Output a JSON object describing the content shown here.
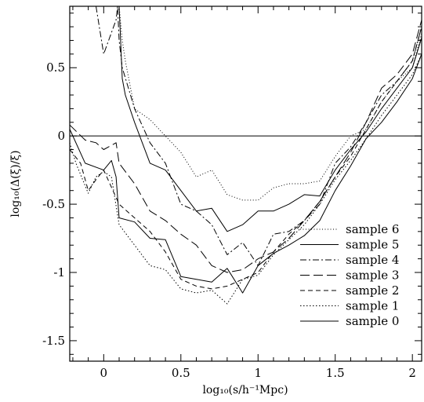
{
  "chart_data": {
    "type": "line",
    "title": "",
    "xlabel": "log₁₀(s/h⁻¹Mpc)",
    "ylabel": "log₁₀(Δ(ξ)/ξ)",
    "xlim": [
      -0.22,
      2.06
    ],
    "ylim": [
      -1.65,
      0.95
    ],
    "x_ticks": [
      0,
      0.5,
      1,
      1.5,
      2
    ],
    "x_tick_labels": [
      "0",
      "0.5",
      "1",
      "1.5",
      "2"
    ],
    "y_ticks": [
      -1.5,
      -1,
      -0.5,
      0,
      0.5
    ],
    "y_tick_labels": [
      "-1.5",
      "-1",
      "-0.5",
      "0",
      "0.5"
    ],
    "reference_line_y": 0,
    "grid": false,
    "legend_position": "bottom-right",
    "series": [
      {
        "name": "sample 6",
        "dash": "dotted-fine",
        "x": [
          0.1,
          0.12,
          0.14,
          0.2,
          0.3,
          0.4,
          0.5,
          0.6,
          0.7,
          0.8,
          0.9,
          1.0,
          1.1,
          1.2,
          1.3,
          1.4,
          1.5,
          1.6,
          1.7,
          1.8,
          1.9,
          2.0,
          2.06
        ],
        "y": [
          0.95,
          0.7,
          0.55,
          0.2,
          0.12,
          0.0,
          -0.12,
          -0.3,
          -0.25,
          -0.43,
          -0.47,
          -0.47,
          -0.38,
          -0.35,
          -0.35,
          -0.33,
          -0.15,
          0.0,
          0.05,
          0.25,
          0.4,
          0.5,
          0.75
        ]
      },
      {
        "name": "sample 5",
        "dash": "solid",
        "x": [
          0.1,
          0.12,
          0.14,
          0.2,
          0.3,
          0.4,
          0.5,
          0.6,
          0.7,
          0.8,
          0.9,
          1.0,
          1.1,
          1.2,
          1.3,
          1.4,
          1.5,
          1.6,
          1.7,
          1.8,
          1.9,
          2.0,
          2.06
        ],
        "y": [
          0.95,
          0.42,
          0.3,
          0.1,
          -0.2,
          -0.25,
          -0.4,
          -0.55,
          -0.53,
          -0.7,
          -0.65,
          -0.55,
          -0.55,
          -0.5,
          -0.43,
          -0.44,
          -0.25,
          -0.1,
          0.03,
          0.2,
          0.35,
          0.5,
          0.72
        ]
      },
      {
        "name": "sample 4",
        "dash": "dash-dot",
        "x": [
          -0.05,
          0.0,
          0.08,
          0.09,
          0.1,
          0.12,
          0.2,
          0.3,
          0.4,
          0.5,
          0.6,
          0.7,
          0.8,
          0.9,
          1.0,
          1.1,
          1.2,
          1.3,
          1.4,
          1.5,
          1.6,
          1.7,
          1.8,
          1.9,
          2.0,
          2.06
        ],
        "y": [
          0.95,
          0.6,
          0.85,
          0.95,
          0.7,
          0.5,
          0.2,
          -0.05,
          -0.2,
          -0.5,
          -0.55,
          -0.65,
          -0.87,
          -0.78,
          -0.95,
          -0.72,
          -0.7,
          -0.62,
          -0.5,
          -0.2,
          -0.08,
          0.1,
          0.3,
          0.4,
          0.55,
          0.8
        ]
      },
      {
        "name": "sample 3",
        "dash": "long-dash",
        "x": [
          -0.22,
          -0.12,
          -0.05,
          0.0,
          0.08,
          0.1,
          0.2,
          0.3,
          0.4,
          0.5,
          0.6,
          0.7,
          0.8,
          0.9,
          1.0,
          1.1,
          1.2,
          1.3,
          1.4,
          1.5,
          1.6,
          1.7,
          1.8,
          1.9,
          2.0,
          2.06
        ],
        "y": [
          0.08,
          -0.03,
          -0.05,
          -0.1,
          -0.05,
          -0.2,
          -0.35,
          -0.55,
          -0.62,
          -0.72,
          -0.8,
          -0.95,
          -1.0,
          -0.98,
          -0.9,
          -0.85,
          -0.75,
          -0.62,
          -0.48,
          -0.3,
          -0.12,
          0.1,
          0.35,
          0.45,
          0.6,
          0.85
        ]
      },
      {
        "name": "sample 2",
        "dash": "short-dash",
        "x": [
          -0.22,
          -0.15,
          -0.1,
          -0.05,
          0.0,
          0.1,
          0.2,
          0.3,
          0.4,
          0.5,
          0.6,
          0.7,
          0.8,
          0.9,
          1.0,
          1.1,
          1.2,
          1.3,
          1.4,
          1.5,
          1.6,
          1.7,
          1.8,
          1.9,
          2.0,
          2.06
        ],
        "y": [
          -0.1,
          -0.2,
          -0.4,
          -0.32,
          -0.25,
          -0.5,
          -0.6,
          -0.7,
          -0.85,
          -1.05,
          -1.1,
          -1.12,
          -1.1,
          -1.05,
          -1.0,
          -0.85,
          -0.72,
          -0.62,
          -0.48,
          -0.3,
          -0.15,
          0.05,
          0.25,
          0.4,
          0.55,
          0.8
        ]
      },
      {
        "name": "sample 1",
        "dash": "dotted",
        "x": [
          -0.22,
          -0.18,
          -0.1,
          -0.05,
          0.0,
          0.05,
          0.1,
          0.2,
          0.3,
          0.4,
          0.5,
          0.6,
          0.7,
          0.8,
          0.9,
          1.0,
          1.1,
          1.2,
          1.3,
          1.4,
          1.5,
          1.6,
          1.7,
          1.8,
          1.9,
          2.0,
          2.06
        ],
        "y": [
          -0.05,
          -0.2,
          -0.42,
          -0.3,
          -0.26,
          -0.3,
          -0.65,
          -0.8,
          -0.95,
          -0.98,
          -1.12,
          -1.15,
          -1.13,
          -1.23,
          -1.05,
          -1.02,
          -0.87,
          -0.76,
          -0.65,
          -0.5,
          -0.32,
          -0.18,
          -0.02,
          0.15,
          0.3,
          0.45,
          0.6
        ]
      },
      {
        "name": "sample 0",
        "dash": "solid",
        "x": [
          -0.22,
          -0.12,
          0.0,
          0.05,
          0.08,
          0.1,
          0.2,
          0.3,
          0.4,
          0.5,
          0.6,
          0.7,
          0.8,
          0.9,
          1.0,
          1.1,
          1.2,
          1.3,
          1.4,
          1.5,
          1.6,
          1.7,
          1.8,
          1.9,
          2.0,
          2.06
        ],
        "y": [
          0.05,
          -0.2,
          -0.25,
          -0.18,
          -0.3,
          -0.6,
          -0.63,
          -0.75,
          -0.76,
          -1.03,
          -1.05,
          -1.07,
          -0.97,
          -1.15,
          -0.95,
          -0.86,
          -0.8,
          -0.73,
          -0.62,
          -0.4,
          -0.22,
          -0.02,
          0.1,
          0.25,
          0.42,
          0.6
        ]
      }
    ]
  }
}
